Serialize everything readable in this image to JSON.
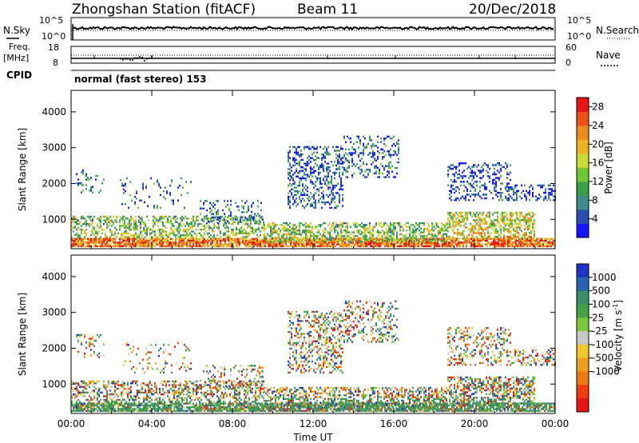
{
  "header": {
    "station": "Zhongshan Station (fitACF)",
    "beam": "Beam 11",
    "date": "20/Dec/2018"
  },
  "noise_panel": {
    "left_label": "N.Sky",
    "right_label": "N.Search",
    "left_ticks": [
      "10^5",
      "10^0"
    ],
    "right_ticks": [
      "10^5",
      "10^0"
    ]
  },
  "freq_panel": {
    "left_label_top": "Freq.",
    "left_label_unit": "[MHz]",
    "right_label": "Nave",
    "left_ticks": [
      "18",
      "8"
    ],
    "right_ticks": [
      "60",
      "0"
    ]
  },
  "cpid": {
    "label": "CPID",
    "mode_text": "normal (fast stereo) 153"
  },
  "chart_data": [
    {
      "type": "heatmap",
      "name": "power",
      "ylabel": "Slant Range [km]",
      "xlabel": "",
      "ylim": [
        180,
        4600
      ],
      "xlim_hours": [
        0,
        24
      ],
      "yticks": [
        "1000",
        "2000",
        "3000",
        "4000"
      ],
      "colorbar": {
        "label": "Power [dB]",
        "ticks": [
          "4",
          "8",
          "12",
          "16",
          "20",
          "24",
          "28"
        ],
        "colors": [
          "#1414ff",
          "#2850b4",
          "#3c8c8c",
          "#37a046",
          "#6ec832",
          "#c8dc32",
          "#f0b41e",
          "#f08c1e",
          "#f05014",
          "#e61414"
        ],
        "range": [
          0,
          30
        ]
      }
    },
    {
      "type": "heatmap",
      "name": "velocity",
      "ylabel": "Slant Range [km]",
      "xlabel": "Time UT",
      "ylim": [
        180,
        4600
      ],
      "xlim_hours": [
        0,
        24
      ],
      "yticks": [
        "1000",
        "2000",
        "3000",
        "4000"
      ],
      "xticks": [
        "00:00",
        "04:00",
        "08:00",
        "12:00",
        "16:00",
        "20:00",
        "00:00"
      ],
      "colorbar": {
        "label": "Velocity [m s",
        "label_sup": "-1",
        "label_end": "]",
        "ticks": [
          "1000",
          "500",
          "100",
          "25",
          "-25",
          "-100",
          "-500",
          "-1000"
        ],
        "colors": [
          "#1e32c8",
          "#2864b4",
          "#3c8c6e",
          "#46a046",
          "#78c83c",
          "#c8c8c8",
          "#f0c828",
          "#f0a01e",
          "#f07814",
          "#f03c0a",
          "#e61414"
        ]
      }
    }
  ]
}
